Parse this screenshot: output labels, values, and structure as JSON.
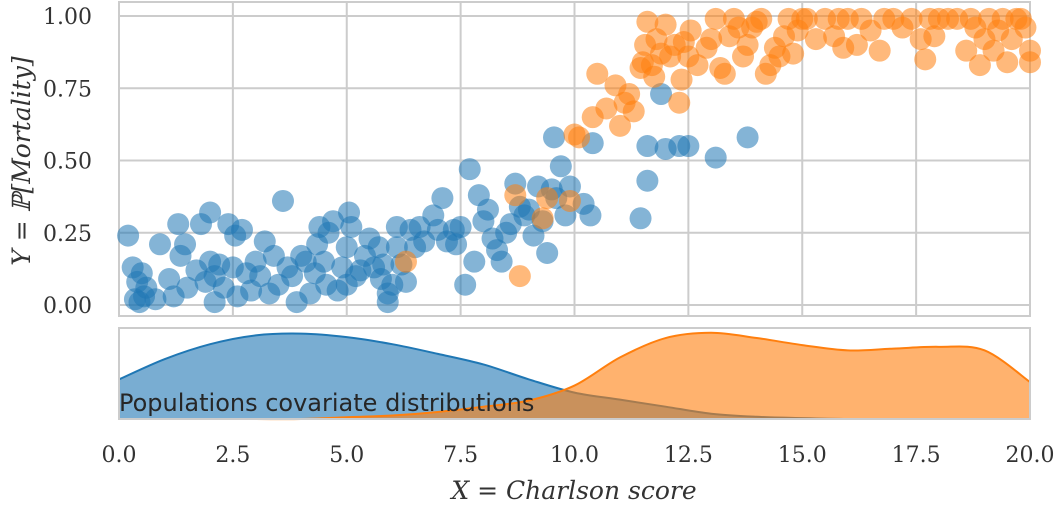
{
  "chart_data": [
    {
      "type": "scatter",
      "xlim": [
        0,
        20
      ],
      "ylim": [
        0,
        1
      ],
      "xlabel": "X = Charlson score",
      "ylabel": "Y = ℙ[Mortality]",
      "yticks": [
        "0.00",
        "0.25",
        "0.50",
        "0.75",
        "1.00"
      ],
      "grid": true,
      "series": [
        {
          "color": "#1f77b4",
          "points": [
            [
              0.2,
              0.24
            ],
            [
              0.3,
              0.13
            ],
            [
              0.35,
              0.02
            ],
            [
              0.4,
              0.08
            ],
            [
              0.45,
              0.01
            ],
            [
              0.5,
              0.11
            ],
            [
              0.55,
              0.03
            ],
            [
              0.6,
              0.06
            ],
            [
              0.8,
              0.02
            ],
            [
              0.9,
              0.21
            ],
            [
              1.1,
              0.09
            ],
            [
              1.2,
              0.03
            ],
            [
              1.3,
              0.28
            ],
            [
              1.35,
              0.17
            ],
            [
              1.45,
              0.21
            ],
            [
              1.5,
              0.06
            ],
            [
              1.7,
              0.12
            ],
            [
              1.8,
              0.28
            ],
            [
              1.9,
              0.08
            ],
            [
              2.0,
              0.32
            ],
            [
              2.0,
              0.15
            ],
            [
              2.1,
              0.1
            ],
            [
              2.1,
              0.01
            ],
            [
              2.2,
              0.14
            ],
            [
              2.3,
              0.06
            ],
            [
              2.4,
              0.28
            ],
            [
              2.5,
              0.13
            ],
            [
              2.55,
              0.24
            ],
            [
              2.6,
              0.03
            ],
            [
              2.7,
              0.26
            ],
            [
              2.8,
              0.11
            ],
            [
              2.9,
              0.05
            ],
            [
              3.0,
              0.15
            ],
            [
              3.1,
              0.1
            ],
            [
              3.2,
              0.22
            ],
            [
              3.3,
              0.04
            ],
            [
              3.4,
              0.17
            ],
            [
              3.5,
              0.07
            ],
            [
              3.6,
              0.36
            ],
            [
              3.7,
              0.13
            ],
            [
              3.8,
              0.1
            ],
            [
              3.9,
              0.01
            ],
            [
              4.0,
              0.17
            ],
            [
              4.1,
              0.15
            ],
            [
              4.2,
              0.04
            ],
            [
              4.3,
              0.11
            ],
            [
              4.35,
              0.21
            ],
            [
              4.4,
              0.27
            ],
            [
              4.5,
              0.15
            ],
            [
              4.55,
              0.07
            ],
            [
              4.6,
              0.25
            ],
            [
              4.7,
              0.29
            ],
            [
              4.8,
              0.05
            ],
            [
              4.9,
              0.13
            ],
            [
              5.0,
              0.2
            ],
            [
              5.0,
              0.07
            ],
            [
              5.05,
              0.32
            ],
            [
              5.1,
              0.27
            ],
            [
              5.2,
              0.1
            ],
            [
              5.3,
              0.12
            ],
            [
              5.4,
              0.17
            ],
            [
              5.5,
              0.23
            ],
            [
              5.6,
              0.13
            ],
            [
              5.7,
              0.2
            ],
            [
              5.75,
              0.09
            ],
            [
              5.8,
              0.14
            ],
            [
              5.9,
              0.04
            ],
            [
              5.9,
              0.01
            ],
            [
              6.0,
              0.07
            ],
            [
              6.1,
              0.27
            ],
            [
              6.1,
              0.2
            ],
            [
              6.2,
              0.14
            ],
            [
              6.3,
              0.08
            ],
            [
              6.4,
              0.26
            ],
            [
              6.5,
              0.2
            ],
            [
              6.6,
              0.27
            ],
            [
              6.7,
              0.22
            ],
            [
              6.9,
              0.31
            ],
            [
              7.0,
              0.26
            ],
            [
              7.1,
              0.37
            ],
            [
              7.2,
              0.22
            ],
            [
              7.35,
              0.26
            ],
            [
              7.4,
              0.21
            ],
            [
              7.5,
              0.27
            ],
            [
              7.6,
              0.07
            ],
            [
              7.7,
              0.47
            ],
            [
              7.8,
              0.15
            ],
            [
              7.9,
              0.38
            ],
            [
              8.0,
              0.29
            ],
            [
              8.1,
              0.33
            ],
            [
              8.2,
              0.23
            ],
            [
              8.3,
              0.19
            ],
            [
              8.4,
              0.15
            ],
            [
              8.5,
              0.25
            ],
            [
              8.6,
              0.28
            ],
            [
              8.7,
              0.42
            ],
            [
              8.8,
              0.34
            ],
            [
              8.9,
              0.31
            ],
            [
              9.0,
              0.33
            ],
            [
              9.1,
              0.24
            ],
            [
              9.2,
              0.41
            ],
            [
              9.3,
              0.29
            ],
            [
              9.4,
              0.18
            ],
            [
              9.5,
              0.4
            ],
            [
              9.55,
              0.58
            ],
            [
              9.6,
              0.37
            ],
            [
              9.7,
              0.48
            ],
            [
              9.8,
              0.31
            ],
            [
              9.9,
              0.41
            ],
            [
              10.2,
              0.35
            ],
            [
              10.35,
              0.31
            ],
            [
              10.4,
              0.56
            ],
            [
              11.45,
              0.3
            ],
            [
              11.6,
              0.55
            ],
            [
              11.6,
              0.43
            ],
            [
              11.9,
              0.73
            ],
            [
              12.0,
              0.54
            ],
            [
              12.3,
              0.55
            ],
            [
              12.5,
              0.55
            ],
            [
              13.1,
              0.51
            ],
            [
              13.8,
              0.58
            ]
          ]
        },
        {
          "color": "#ff7f0e",
          "points": [
            [
              6.3,
              0.15
            ],
            [
              8.7,
              0.38
            ],
            [
              8.8,
              0.1
            ],
            [
              9.3,
              0.3
            ],
            [
              9.4,
              0.37
            ],
            [
              9.9,
              0.36
            ],
            [
              10.0,
              0.59
            ],
            [
              10.1,
              0.58
            ],
            [
              10.4,
              0.65
            ],
            [
              10.5,
              0.8
            ],
            [
              10.7,
              0.68
            ],
            [
              10.9,
              0.76
            ],
            [
              11.0,
              0.62
            ],
            [
              11.1,
              0.7
            ],
            [
              11.2,
              0.73
            ],
            [
              11.3,
              0.67
            ],
            [
              11.45,
              0.82
            ],
            [
              11.5,
              0.84
            ],
            [
              11.55,
              0.9
            ],
            [
              11.6,
              0.98
            ],
            [
              11.7,
              0.83
            ],
            [
              11.75,
              0.79
            ],
            [
              11.8,
              0.92
            ],
            [
              11.9,
              0.87
            ],
            [
              12.0,
              0.97
            ],
            [
              12.1,
              0.86
            ],
            [
              12.2,
              0.9
            ],
            [
              12.3,
              0.7
            ],
            [
              12.35,
              0.78
            ],
            [
              12.4,
              0.91
            ],
            [
              12.5,
              0.86
            ],
            [
              12.55,
              0.95
            ],
            [
              12.7,
              0.83
            ],
            [
              12.9,
              0.89
            ],
            [
              13.0,
              0.92
            ],
            [
              13.1,
              0.99
            ],
            [
              13.2,
              0.82
            ],
            [
              13.3,
              0.8
            ],
            [
              13.4,
              0.93
            ],
            [
              13.5,
              0.99
            ],
            [
              13.6,
              0.96
            ],
            [
              13.7,
              0.86
            ],
            [
              13.8,
              0.9
            ],
            [
              13.9,
              0.96
            ],
            [
              14.0,
              0.98
            ],
            [
              14.1,
              0.99
            ],
            [
              14.2,
              0.8
            ],
            [
              14.3,
              0.83
            ],
            [
              14.4,
              0.89
            ],
            [
              14.5,
              0.86
            ],
            [
              14.6,
              0.93
            ],
            [
              14.7,
              0.99
            ],
            [
              14.8,
              0.87
            ],
            [
              14.9,
              0.95
            ],
            [
              15.0,
              0.99
            ],
            [
              15.1,
              0.99
            ],
            [
              15.3,
              0.92
            ],
            [
              15.5,
              0.99
            ],
            [
              15.7,
              0.93
            ],
            [
              15.8,
              0.99
            ],
            [
              15.9,
              0.89
            ],
            [
              16.0,
              0.99
            ],
            [
              16.2,
              0.9
            ],
            [
              16.3,
              0.99
            ],
            [
              16.5,
              0.95
            ],
            [
              16.7,
              0.88
            ],
            [
              16.8,
              0.99
            ],
            [
              17.0,
              0.99
            ],
            [
              17.2,
              0.96
            ],
            [
              17.4,
              0.99
            ],
            [
              17.6,
              0.92
            ],
            [
              17.7,
              0.85
            ],
            [
              17.8,
              0.99
            ],
            [
              17.9,
              0.93
            ],
            [
              18.0,
              0.99
            ],
            [
              18.2,
              0.99
            ],
            [
              18.4,
              0.99
            ],
            [
              18.6,
              0.88
            ],
            [
              18.7,
              0.99
            ],
            [
              18.8,
              0.96
            ],
            [
              18.9,
              0.83
            ],
            [
              19.0,
              0.92
            ],
            [
              19.1,
              0.99
            ],
            [
              19.2,
              0.88
            ],
            [
              19.3,
              0.95
            ],
            [
              19.4,
              0.99
            ],
            [
              19.5,
              0.84
            ],
            [
              19.6,
              0.92
            ],
            [
              19.7,
              0.99
            ],
            [
              19.8,
              0.99
            ],
            [
              19.9,
              0.96
            ],
            [
              20.0,
              0.84
            ],
            [
              20.0,
              0.88
            ]
          ]
        }
      ]
    },
    {
      "type": "area",
      "annotation": "Populations covariate distributions",
      "xlim": [
        0,
        20
      ],
      "xticks": [
        "0.0",
        "2.5",
        "5.0",
        "7.5",
        "10.0",
        "12.5",
        "15.0",
        "17.5",
        "20.0"
      ],
      "grid": false,
      "series": [
        {
          "color": "#1f77b4",
          "x": [
            0,
            1,
            2,
            3,
            4,
            5,
            6,
            7,
            8,
            9,
            10,
            11,
            12,
            13,
            14,
            15,
            16,
            17,
            18,
            19,
            20
          ],
          "y": [
            0.45,
            0.68,
            0.85,
            0.95,
            0.97,
            0.93,
            0.85,
            0.74,
            0.62,
            0.45,
            0.3,
            0.22,
            0.14,
            0.06,
            0.025,
            0.01,
            0,
            0,
            0,
            0,
            0
          ]
        },
        {
          "color": "#ff7f0e",
          "x": [
            0,
            1,
            2,
            3,
            4,
            5,
            6,
            7,
            8,
            9,
            10,
            11,
            12,
            13,
            14,
            15,
            16,
            17,
            18,
            19,
            20
          ],
          "y": [
            0,
            0,
            0,
            0,
            0,
            0.02,
            0.04,
            0.08,
            0.14,
            0.21,
            0.38,
            0.7,
            0.92,
            0.98,
            0.92,
            0.84,
            0.78,
            0.8,
            0.82,
            0.78,
            0.42
          ]
        }
      ]
    }
  ]
}
